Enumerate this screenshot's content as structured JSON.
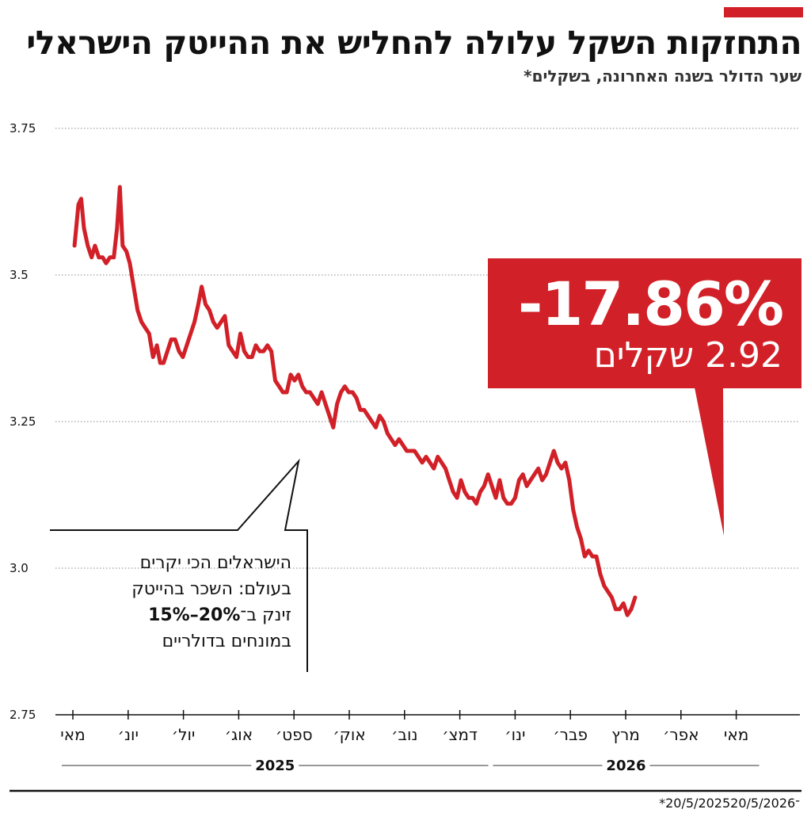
{
  "header": {
    "title": "התחזקות השקל עלולה להחליש את ההייטק הישראלי",
    "subtitle": "שער הדולר בשנה האחרונה, בשקלים*"
  },
  "badge": {
    "change": "-17.86%",
    "value": "2.92 שקלים"
  },
  "note": {
    "line1": "הישראלים הכי יקרים",
    "line2": "בעולם: השכר בהייטק",
    "line3_prefix": "זינק ב־",
    "line3_bold": "15%–20%",
    "line4": "במונחים בדולריים"
  },
  "footnote": "*20/5/2025־20/5/2026",
  "colors": {
    "accent": "#d12027",
    "line": "#d12027",
    "grid": "#888888"
  },
  "chart_data": {
    "type": "line",
    "title": "התחזקות השקל עלולה להחליש את ההייטק הישראלי",
    "ylabel": "",
    "xlabel": "",
    "ylim": [
      2.75,
      3.75
    ],
    "yticks": [
      "2.75",
      "3.0",
      "3.25",
      "3.5",
      "3.75"
    ],
    "grid": "horizontal dotted",
    "month_ticks": [
      "מאי",
      "יונ׳",
      "יול׳",
      "אוג׳",
      "ספט׳",
      "אוק׳",
      "נוב׳",
      "דמצ׳",
      "ינו׳",
      "פבר׳",
      "מרץ",
      "אפר׳",
      "מאי"
    ],
    "years": [
      {
        "label": "2025",
        "from": 0,
        "to": 7.4
      },
      {
        "label": "2026",
        "from": 7.8,
        "to": 12.3
      }
    ],
    "series": [
      {
        "values": [
          [
            0.03,
            3.55
          ],
          [
            0.1,
            3.62
          ],
          [
            0.15,
            3.63
          ],
          [
            0.2,
            3.58
          ],
          [
            0.27,
            3.55
          ],
          [
            0.34,
            3.53
          ],
          [
            0.4,
            3.55
          ],
          [
            0.47,
            3.53
          ],
          [
            0.54,
            3.53
          ],
          [
            0.6,
            3.52
          ],
          [
            0.67,
            3.53
          ],
          [
            0.74,
            3.53
          ],
          [
            0.8,
            3.58
          ],
          [
            0.85,
            3.65
          ],
          [
            0.9,
            3.55
          ],
          [
            0.97,
            3.54
          ],
          [
            1.03,
            3.52
          ],
          [
            1.1,
            3.48
          ],
          [
            1.17,
            3.44
          ],
          [
            1.24,
            3.42
          ],
          [
            1.31,
            3.41
          ],
          [
            1.38,
            3.4
          ],
          [
            1.45,
            3.36
          ],
          [
            1.52,
            3.38
          ],
          [
            1.58,
            3.35
          ],
          [
            1.64,
            3.35
          ],
          [
            1.71,
            3.37
          ],
          [
            1.78,
            3.39
          ],
          [
            1.85,
            3.39
          ],
          [
            1.92,
            3.37
          ],
          [
            1.99,
            3.36
          ],
          [
            2.06,
            3.38
          ],
          [
            2.13,
            3.4
          ],
          [
            2.2,
            3.42
          ],
          [
            2.27,
            3.45
          ],
          [
            2.33,
            3.48
          ],
          [
            2.4,
            3.45
          ],
          [
            2.47,
            3.44
          ],
          [
            2.54,
            3.42
          ],
          [
            2.61,
            3.41
          ],
          [
            2.68,
            3.42
          ],
          [
            2.75,
            3.43
          ],
          [
            2.82,
            3.38
          ],
          [
            2.89,
            3.37
          ],
          [
            2.96,
            3.36
          ],
          [
            3.03,
            3.4
          ],
          [
            3.1,
            3.37
          ],
          [
            3.17,
            3.36
          ],
          [
            3.24,
            3.36
          ],
          [
            3.31,
            3.38
          ],
          [
            3.38,
            3.37
          ],
          [
            3.45,
            3.37
          ],
          [
            3.52,
            3.38
          ],
          [
            3.59,
            3.37
          ],
          [
            3.66,
            3.32
          ],
          [
            3.73,
            3.31
          ],
          [
            3.8,
            3.3
          ],
          [
            3.87,
            3.3
          ],
          [
            3.94,
            3.33
          ],
          [
            4.01,
            3.32
          ],
          [
            4.08,
            3.33
          ],
          [
            4.15,
            3.31
          ],
          [
            4.22,
            3.3
          ],
          [
            4.29,
            3.3
          ],
          [
            4.36,
            3.29
          ],
          [
            4.43,
            3.28
          ],
          [
            4.5,
            3.3
          ],
          [
            4.57,
            3.28
          ],
          [
            4.64,
            3.26
          ],
          [
            4.71,
            3.24
          ],
          [
            4.78,
            3.28
          ],
          [
            4.85,
            3.3
          ],
          [
            4.92,
            3.31
          ],
          [
            4.99,
            3.3
          ],
          [
            5.06,
            3.3
          ],
          [
            5.13,
            3.29
          ],
          [
            5.2,
            3.27
          ],
          [
            5.27,
            3.27
          ],
          [
            5.34,
            3.26
          ],
          [
            5.41,
            3.25
          ],
          [
            5.48,
            3.24
          ],
          [
            5.55,
            3.26
          ],
          [
            5.62,
            3.25
          ],
          [
            5.69,
            3.23
          ],
          [
            5.76,
            3.22
          ],
          [
            5.83,
            3.21
          ],
          [
            5.9,
            3.22
          ],
          [
            5.97,
            3.21
          ],
          [
            6.04,
            3.2
          ],
          [
            6.11,
            3.2
          ],
          [
            6.18,
            3.2
          ],
          [
            6.25,
            3.19
          ],
          [
            6.32,
            3.18
          ],
          [
            6.39,
            3.19
          ],
          [
            6.46,
            3.18
          ],
          [
            6.53,
            3.17
          ],
          [
            6.6,
            3.19
          ],
          [
            6.67,
            3.18
          ],
          [
            6.74,
            3.17
          ],
          [
            6.81,
            3.15
          ],
          [
            6.88,
            3.13
          ],
          [
            6.95,
            3.12
          ],
          [
            7.02,
            3.15
          ],
          [
            7.09,
            3.13
          ],
          [
            7.16,
            3.12
          ],
          [
            7.23,
            3.12
          ],
          [
            7.3,
            3.11
          ],
          [
            7.37,
            3.13
          ],
          [
            7.44,
            3.14
          ],
          [
            7.51,
            3.16
          ],
          [
            7.58,
            3.14
          ],
          [
            7.65,
            3.12
          ],
          [
            7.72,
            3.15
          ],
          [
            7.79,
            3.12
          ],
          [
            7.86,
            3.11
          ],
          [
            7.93,
            3.11
          ],
          [
            8.0,
            3.12
          ],
          [
            8.07,
            3.15
          ],
          [
            8.14,
            3.16
          ],
          [
            8.21,
            3.14
          ],
          [
            8.28,
            3.15
          ],
          [
            8.35,
            3.16
          ],
          [
            8.42,
            3.17
          ],
          [
            8.49,
            3.15
          ],
          [
            8.56,
            3.16
          ],
          [
            8.63,
            3.18
          ],
          [
            8.7,
            3.2
          ],
          [
            8.77,
            3.18
          ],
          [
            8.84,
            3.17
          ],
          [
            8.91,
            3.18
          ],
          [
            8.98,
            3.15
          ],
          [
            9.05,
            3.1
          ],
          [
            9.12,
            3.07
          ],
          [
            9.19,
            3.05
          ],
          [
            9.26,
            3.02
          ],
          [
            9.33,
            3.03
          ],
          [
            9.4,
            3.02
          ],
          [
            9.47,
            3.02
          ],
          [
            9.54,
            2.99
          ],
          [
            9.61,
            2.97
          ],
          [
            9.68,
            2.96
          ],
          [
            9.75,
            2.95
          ],
          [
            9.82,
            2.93
          ],
          [
            9.89,
            2.93
          ],
          [
            9.96,
            2.94
          ],
          [
            10.03,
            2.92
          ],
          [
            10.1,
            2.93
          ],
          [
            10.17,
            2.95
          ]
        ]
      }
    ]
  }
}
